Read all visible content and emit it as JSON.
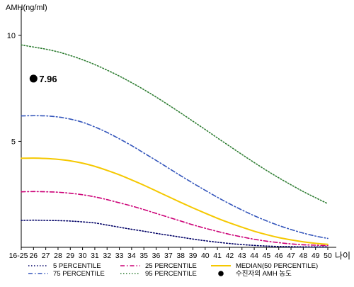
{
  "chart_data": {
    "type": "line",
    "ylabel": "AMH(ng/ml)",
    "xlabel": "나이",
    "ylim": [
      0,
      11
    ],
    "x_tick_labels": [
      "16-25",
      "26",
      "27",
      "28",
      "29",
      "30",
      "31",
      "32",
      "33",
      "34",
      "35",
      "36",
      "37",
      "38",
      "39",
      "40",
      "41",
      "42",
      "43",
      "44",
      "45",
      "46",
      "47",
      "48",
      "49",
      "50"
    ],
    "y_ticks": [
      5,
      10
    ],
    "grid": false,
    "legend_placement": "bottom",
    "series": [
      {
        "name": "5 PERCENTILE",
        "color": "#000066",
        "dash": "dotted",
        "values": [
          1.27,
          1.28,
          1.27,
          1.26,
          1.24,
          1.2,
          1.15,
          1.05,
          0.95,
          0.85,
          0.76,
          0.66,
          0.57,
          0.48,
          0.39,
          0.31,
          0.24,
          0.18,
          0.13,
          0.09,
          0.06,
          0.04,
          0.03,
          0.02,
          0.02,
          0.02
        ]
      },
      {
        "name": "25 PERCENTILE",
        "color": "#CC0077",
        "dash": "dashdot",
        "values": [
          2.62,
          2.63,
          2.62,
          2.6,
          2.55,
          2.48,
          2.38,
          2.25,
          2.1,
          1.95,
          1.78,
          1.6,
          1.42,
          1.24,
          1.06,
          0.9,
          0.75,
          0.61,
          0.49,
          0.38,
          0.29,
          0.22,
          0.16,
          0.12,
          0.1,
          0.08
        ]
      },
      {
        "name": "MEDIAN(50 PERCENTILE)",
        "color": "#F5C800",
        "dash": "solid",
        "values": [
          4.2,
          4.21,
          4.19,
          4.15,
          4.08,
          3.97,
          3.82,
          3.63,
          3.42,
          3.18,
          2.93,
          2.66,
          2.39,
          2.12,
          1.86,
          1.61,
          1.37,
          1.15,
          0.95,
          0.76,
          0.6,
          0.46,
          0.35,
          0.26,
          0.19,
          0.14
        ]
      },
      {
        "name": "75 PERCENTILE",
        "color": "#3355BB",
        "dash": "dashdot",
        "values": [
          6.2,
          6.21,
          6.2,
          6.15,
          6.05,
          5.9,
          5.68,
          5.42,
          5.12,
          4.8,
          4.45,
          4.1,
          3.74,
          3.38,
          3.03,
          2.69,
          2.36,
          2.05,
          1.76,
          1.49,
          1.25,
          1.03,
          0.84,
          0.67,
          0.53,
          0.42
        ]
      },
      {
        "name": "95 PERCENTILE",
        "color": "#2E7D32",
        "dash": "dotted",
        "values": [
          9.55,
          9.45,
          9.35,
          9.22,
          9.05,
          8.85,
          8.62,
          8.36,
          8.08,
          7.77,
          7.44,
          7.09,
          6.72,
          6.34,
          5.95,
          5.56,
          5.16,
          4.77,
          4.38,
          4.0,
          3.63,
          3.28,
          2.95,
          2.63,
          2.34,
          2.06
        ]
      }
    ],
    "highlight_point": {
      "name": "수진자의 AMH 농도",
      "x_index": 1,
      "value": 7.96,
      "label": "7.96",
      "color": "#000000"
    }
  }
}
